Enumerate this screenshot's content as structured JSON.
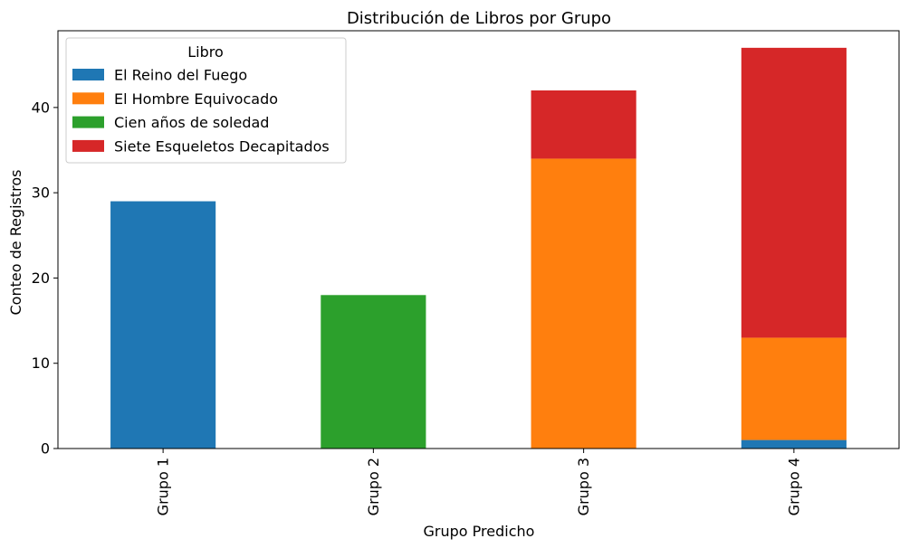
{
  "chart_data": {
    "type": "bar",
    "stacked": true,
    "title": "Distribución de Libros por Grupo",
    "xlabel": "Grupo Predicho",
    "ylabel": "Conteo de Registros",
    "categories": [
      "Grupo 1",
      "Grupo 2",
      "Grupo 3",
      "Grupo 4"
    ],
    "yticks": [
      0,
      10,
      20,
      30,
      40
    ],
    "ylim": [
      0,
      49
    ],
    "grid": false,
    "legend": {
      "title": "Libro",
      "placement": "top-left"
    },
    "series": [
      {
        "name": "El Reino del Fuego",
        "color": "#1f77b4",
        "values": [
          29,
          0,
          0,
          1
        ]
      },
      {
        "name": "El Hombre Equivocado",
        "color": "#ff7f0e",
        "values": [
          0,
          0,
          34,
          12
        ]
      },
      {
        "name": "Cien años de soledad",
        "color": "#2ca02c",
        "values": [
          0,
          18,
          0,
          0
        ]
      },
      {
        "name": "Siete Esqueletos Decapitados",
        "color": "#d62728",
        "values": [
          0,
          0,
          8,
          34
        ]
      }
    ]
  }
}
